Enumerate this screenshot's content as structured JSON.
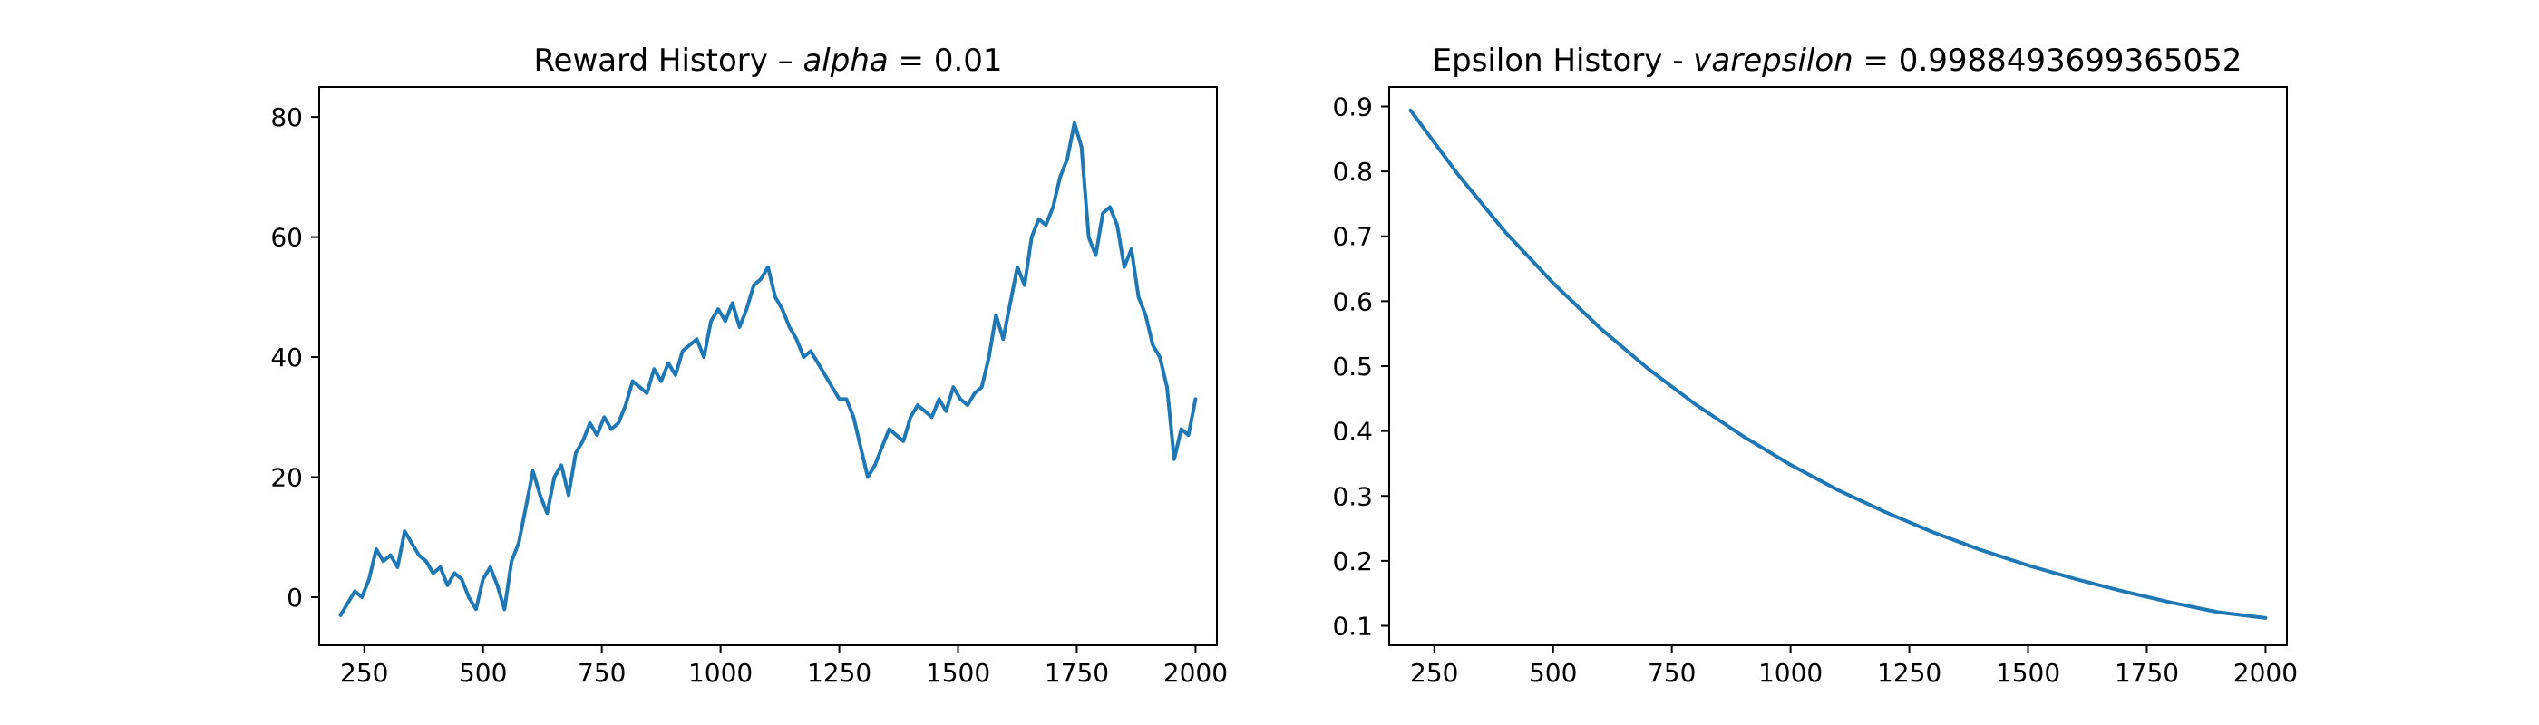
{
  "colors": {
    "series": "#1f77b4",
    "axes": "#000000",
    "background": "#ffffff"
  },
  "chart_data": [
    {
      "type": "line",
      "title": "Reward History – alpha = 0.01",
      "title_parts": {
        "prefix": "Reward History – ",
        "italic": "alpha",
        "suffix": " = 0.01"
      },
      "xlabel": "",
      "ylabel": "",
      "xlim": [
        155,
        2045
      ],
      "ylim": [
        -8,
        85
      ],
      "xticks": [
        250,
        500,
        750,
        1000,
        1250,
        1500,
        1750,
        2000
      ],
      "yticks": [
        0,
        20,
        40,
        60,
        80
      ],
      "grid": false,
      "series": [
        {
          "x": [
            200,
            215,
            230,
            245,
            260,
            275,
            290,
            305,
            320,
            335,
            350,
            365,
            380,
            395,
            410,
            425,
            440,
            455,
            470,
            485,
            500,
            515,
            530,
            545,
            560,
            575,
            590,
            605,
            620,
            635,
            650,
            665,
            680,
            695,
            710,
            725,
            740,
            755,
            770,
            785,
            800,
            815,
            830,
            845,
            860,
            875,
            890,
            905,
            920,
            935,
            950,
            965,
            980,
            995,
            1010,
            1025,
            1040,
            1055,
            1070,
            1085,
            1100,
            1115,
            1130,
            1145,
            1160,
            1175,
            1190,
            1205,
            1220,
            1235,
            1250,
            1265,
            1280,
            1295,
            1310,
            1325,
            1340,
            1355,
            1370,
            1385,
            1400,
            1415,
            1430,
            1445,
            1460,
            1475,
            1490,
            1505,
            1520,
            1535,
            1550,
            1565,
            1580,
            1595,
            1610,
            1625,
            1640,
            1655,
            1670,
            1685,
            1700,
            1715,
            1730,
            1745,
            1760,
            1775,
            1790,
            1805,
            1820,
            1835,
            1850,
            1865,
            1880,
            1895,
            1910,
            1925,
            1940,
            1955,
            1970,
            1985,
            2000
          ],
          "values": [
            -3,
            -1,
            1,
            0,
            3,
            8,
            6,
            7,
            5,
            11,
            9,
            7,
            6,
            4,
            5,
            2,
            4,
            3,
            0,
            -2,
            3,
            5,
            2,
            -2,
            6,
            9,
            15,
            21,
            17,
            14,
            20,
            22,
            17,
            24,
            26,
            29,
            27,
            30,
            28,
            29,
            32,
            36,
            35,
            34,
            38,
            36,
            39,
            37,
            41,
            42,
            43,
            40,
            46,
            48,
            46,
            49,
            45,
            48,
            52,
            53,
            55,
            50,
            48,
            45,
            43,
            40,
            41,
            39,
            37,
            35,
            33,
            33,
            30,
            25,
            20,
            22,
            25,
            28,
            27,
            26,
            30,
            32,
            31,
            30,
            33,
            31,
            35,
            33,
            32,
            34,
            35,
            40,
            47,
            43,
            49,
            55,
            52,
            60,
            63,
            62,
            65,
            70,
            73,
            79,
            75,
            60,
            57,
            64,
            65,
            62,
            55,
            58,
            50,
            47,
            42,
            40,
            35,
            23,
            28,
            27,
            33
          ]
        }
      ]
    },
    {
      "type": "line",
      "title": "Epsilon History - varepsilon = 0.9988493699365052",
      "title_parts": {
        "prefix": "Epsilon History - ",
        "italic": "varepsilon",
        "suffix": " = 0.9988493699365052"
      },
      "xlabel": "",
      "ylabel": "",
      "xlim": [
        155,
        2045
      ],
      "ylim": [
        0.07,
        0.93
      ],
      "xticks": [
        250,
        500,
        750,
        1000,
        1250,
        1500,
        1750,
        2000
      ],
      "yticks": [
        0.1,
        0.2,
        0.3,
        0.4,
        0.5,
        0.6,
        0.7,
        0.8,
        0.9
      ],
      "grid": false,
      "series": [
        {
          "x": [
            200,
            300,
            400,
            500,
            600,
            700,
            800,
            900,
            1000,
            1100,
            1200,
            1300,
            1400,
            1500,
            1600,
            1700,
            1800,
            1900,
            2000
          ],
          "values": [
            0.894,
            0.795,
            0.706,
            0.628,
            0.558,
            0.496,
            0.441,
            0.392,
            0.348,
            0.309,
            0.275,
            0.244,
            0.217,
            0.193,
            0.172,
            0.153,
            0.136,
            0.121,
            0.112
          ]
        }
      ]
    }
  ]
}
